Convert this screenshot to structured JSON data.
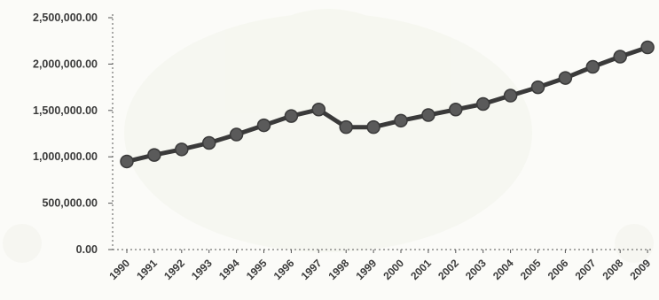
{
  "chart_data": {
    "type": "line",
    "title": "",
    "xlabel": "",
    "ylabel": "",
    "categories": [
      "1990",
      "1991",
      "1992",
      "1993",
      "1994",
      "1995",
      "1996",
      "1997",
      "1998",
      "1999",
      "2000",
      "2001",
      "2002",
      "2003",
      "2004",
      "2005",
      "2006",
      "2007",
      "2008",
      "2009"
    ],
    "series": [
      {
        "values": [
          950000,
          1020000,
          1080000,
          1150000,
          1240000,
          1340000,
          1440000,
          1510000,
          1320000,
          1320000,
          1390000,
          1450000,
          1510000,
          1570000,
          1660000,
          1750000,
          1850000,
          1970000,
          2080000,
          2180000
        ]
      }
    ],
    "yticks": [
      "0.00",
      "500,000.00",
      "1,000,000.00",
      "1,500,000.00",
      "2,000,000.00",
      "2,500,000.00"
    ],
    "ylim": [
      0,
      2500000
    ],
    "grid": false,
    "legend": "none",
    "colors": {
      "line": "#3a3a3a",
      "marker": "#5a5a5a",
      "axis": "#555555",
      "text": "#3b3b3b",
      "background": "#fbfbf8"
    }
  }
}
